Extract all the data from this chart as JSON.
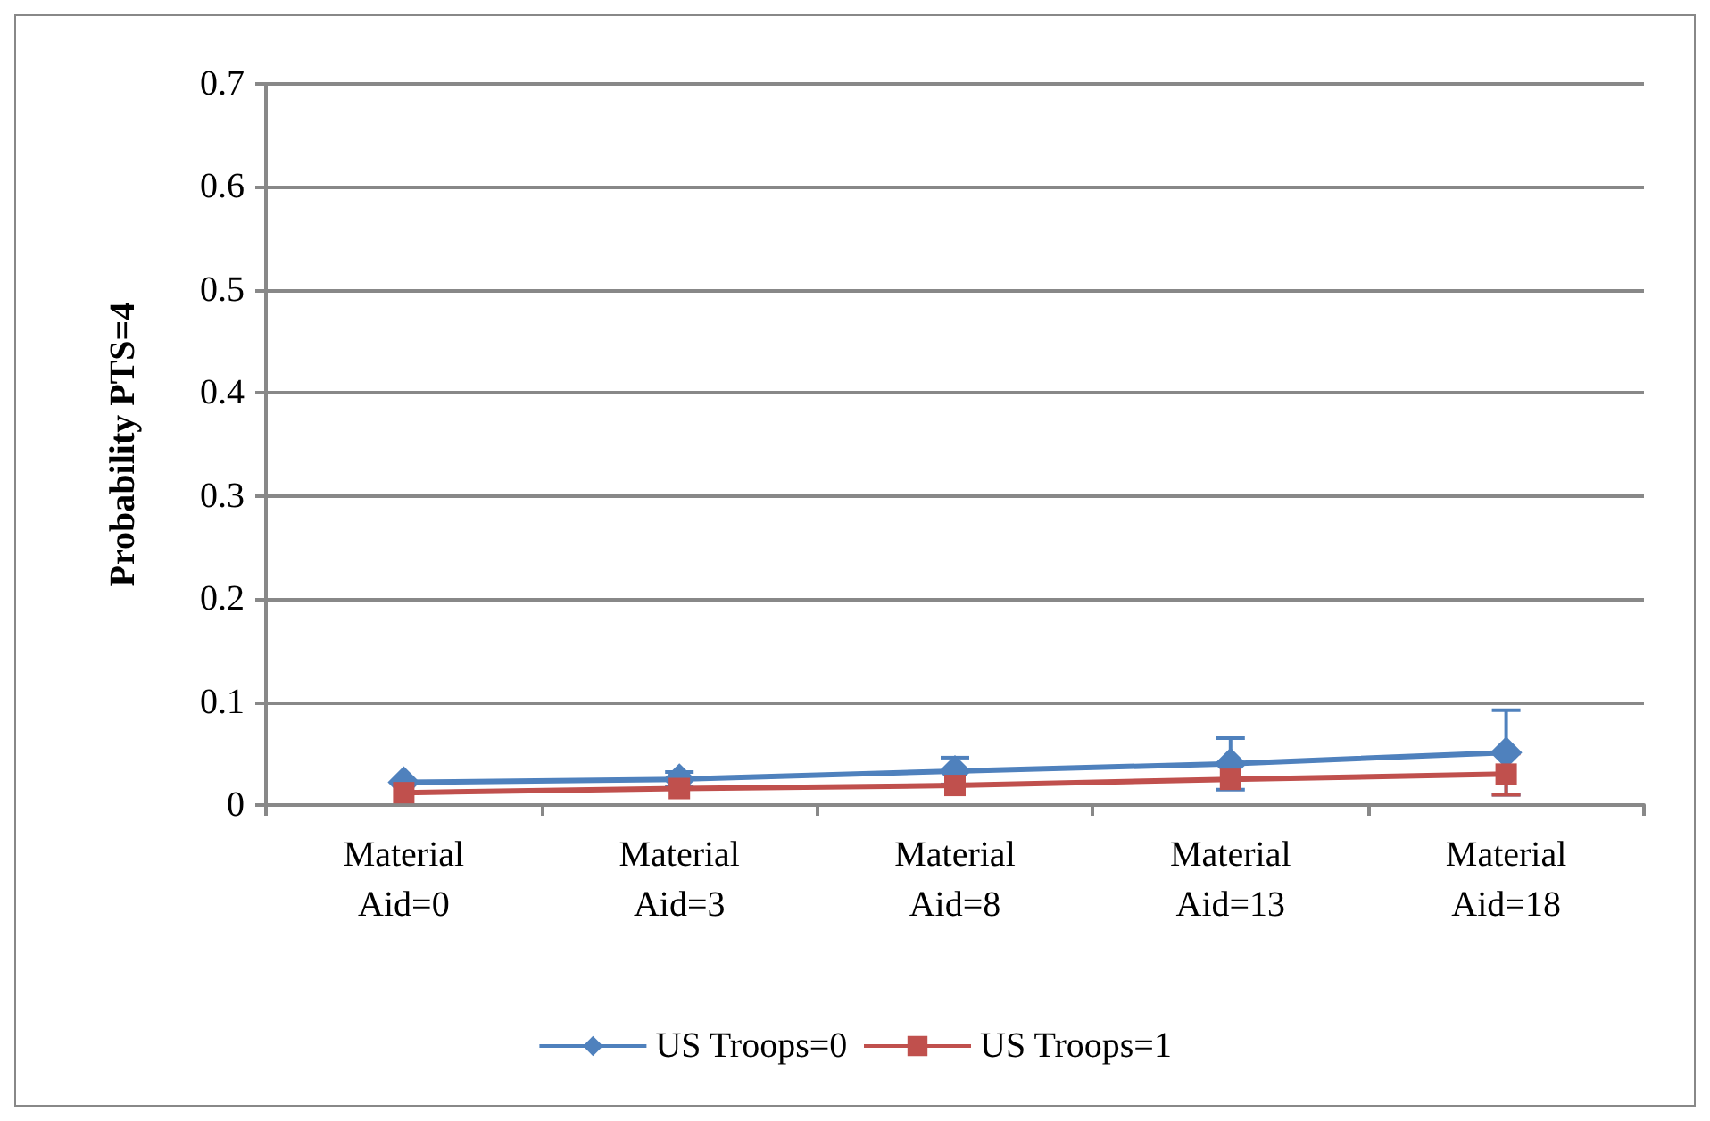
{
  "chart_data": {
    "type": "line",
    "ylabel": "Probability PTS=4",
    "categories": [
      "Material\nAid=0",
      "Material\nAid=3",
      "Material\nAid=8",
      "Material\nAid=13",
      "Material\nAid=18"
    ],
    "series": [
      {
        "name": "US Troops=0",
        "color": "#4f81bd",
        "marker": "diamond",
        "values": [
          0.022,
          0.025,
          0.033,
          0.04,
          0.051
        ],
        "errors": [
          null,
          0.007,
          0.013,
          0.025,
          0.041
        ]
      },
      {
        "name": "US Troops=1",
        "color": "#c0504d",
        "marker": "square",
        "values": [
          0.012,
          0.016,
          0.019,
          0.025,
          0.03
        ],
        "errors": [
          null,
          null,
          null,
          null,
          0.02
        ]
      }
    ],
    "ylim": [
      0,
      0.7
    ],
    "yticks": [
      0,
      0.1,
      0.2,
      0.3,
      0.4,
      0.5,
      0.6,
      0.7
    ],
    "grid": "y",
    "legend": "bottom"
  }
}
